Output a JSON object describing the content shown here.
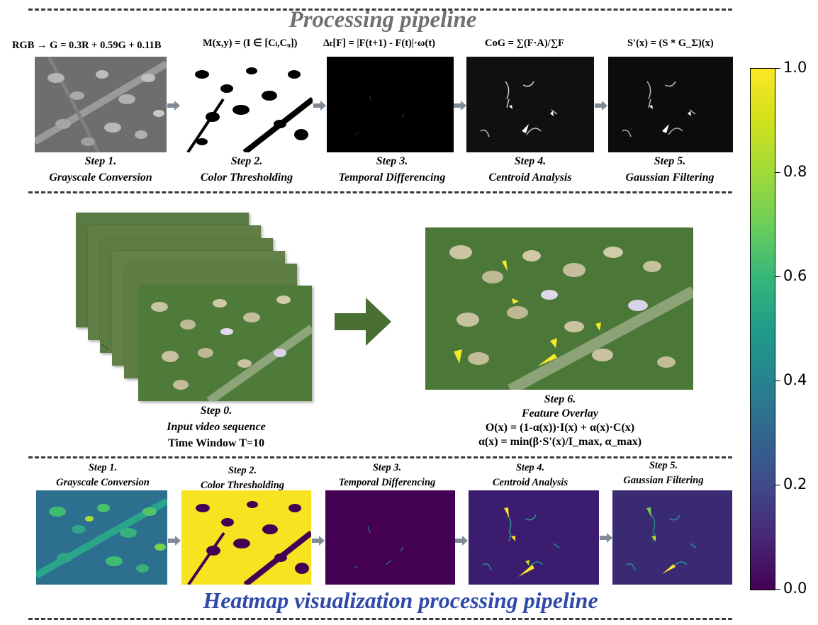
{
  "top_title": "Processing pipeline",
  "bottom_title": "Heatmap visualization processing pipeline",
  "formulas": {
    "f1": "RGB → G = 0.3R + 0.59G + 0.11B",
    "f2": "M(x,y) = (I ∈ [Cₗ,Cᵤ])",
    "f3": "Δₜ[F] = |F(t+1) - F(t)|·ω(t)",
    "f4": "CoG = ∑(F·A)/∑F",
    "f5": "S'(x) = (S * G_Σ)(x)"
  },
  "top_steps": [
    {
      "step": "Step 1.",
      "name": "Grayscale Conversion"
    },
    {
      "step": "Step 2.",
      "name": "Color Thresholding"
    },
    {
      "step": "Step 3.",
      "name": "Temporal Differencing"
    },
    {
      "step": "Step 4.",
      "name": "Centroid Analysis"
    },
    {
      "step": "Step 5.",
      "name": "Gaussian Filtering"
    }
  ],
  "input": {
    "step": "Step 0.",
    "name": "Input video sequence",
    "window": "Time Window T=10"
  },
  "overlay": {
    "step": "Step 6.",
    "name": "Feature Overlay",
    "eq1": "O(x) = (1-α(x))·I(x) + α(x)·C(x)",
    "eq2": "α(x) = min(β·S'(x)/I_max, α_max)"
  },
  "bottom_steps": [
    {
      "step": "Step 1.",
      "name": "Grayscale Conversion"
    },
    {
      "step": "Step 2.",
      "name": "Color Thresholding"
    },
    {
      "step": "Step 3.",
      "name": "Temporal Differencing"
    },
    {
      "step": "Step 4.",
      "name": "Centroid Analysis"
    },
    {
      "step": "Step 5.",
      "name": "Gaussian Filtering"
    }
  ],
  "colorbar": {
    "colormap": "viridis",
    "min": 0.0,
    "max": 1.0,
    "ticks": [
      "0.0",
      "0.2",
      "0.4",
      "0.6",
      "0.8",
      "1.0"
    ]
  },
  "colors": {
    "top_title": "#707070",
    "bottom_title": "#2f4aa8",
    "big_arrow": "#4a6f32",
    "small_arrow": "#7f8a94"
  }
}
